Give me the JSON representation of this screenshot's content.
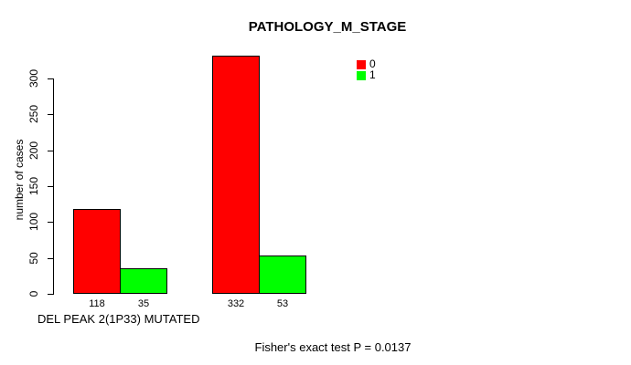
{
  "chart_data": {
    "type": "bar",
    "title": "PATHOLOGY_M_STAGE",
    "xlabel": "DEL PEAK 2(1P33) MUTATED",
    "ylabel": "number of cases",
    "ylim": [
      0,
      300
    ],
    "yticks": [
      0,
      50,
      100,
      150,
      200,
      250,
      300
    ],
    "ytick_labels": [
      "0",
      "50",
      "100",
      "150",
      "200",
      "250",
      "300"
    ],
    "categories": [
      "",
      ""
    ],
    "series": [
      {
        "name": "0",
        "color": "#ff0000",
        "values": [
          118,
          332
        ]
      },
      {
        "name": "1",
        "color": "#00ff00",
        "values": [
          35,
          53
        ]
      }
    ],
    "legend_position": "top-right",
    "grid": false,
    "annotation": "Fisher's exact test P = 0.0137"
  },
  "legend": {
    "items": [
      {
        "label": "0",
        "color": "#ff0000"
      },
      {
        "label": "1",
        "color": "#00ff00"
      }
    ]
  },
  "footnote": "Fisher's exact test P = 0.0137"
}
